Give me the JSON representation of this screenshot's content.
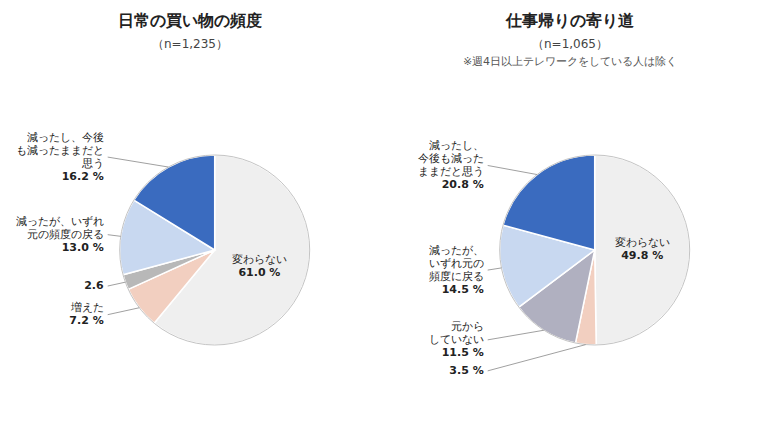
{
  "chart_data": [
    {
      "type": "pie",
      "title": "日常の買い物の頻度",
      "subtitle": "（n=1,235）",
      "categories": [
        "変わらない",
        "増えた",
        null,
        "減ったが、いずれ\n元の頻度の戻る",
        "減ったし、今後\nも減ったままだと\n思う"
      ],
      "values": [
        61.0,
        7.2,
        2.6,
        13.0,
        16.2
      ],
      "value_labels": [
        "61.0 %",
        "7.2 %",
        "2.6",
        "13.0 %",
        "16.2 %"
      ],
      "colors": [
        "#efefef",
        "#f2cfc0",
        "#b8b8b8",
        "#c8d8f0",
        "#3a6bbf"
      ],
      "data_labels": true
    },
    {
      "type": "pie",
      "title": "仕事帰りの寄り道",
      "subtitle": "（n=1,065）",
      "annotations": [
        "※週4日以上テレワークをしている人は除く"
      ],
      "categories": [
        "変わらない",
        null,
        "元から\nしていない",
        "減ったが、\nいずれ元の\n頻度に戻る",
        "減ったし、\n今後も減った\nままだと思う"
      ],
      "values": [
        49.8,
        3.5,
        11.5,
        14.5,
        20.8
      ],
      "value_labels": [
        "49.8 %",
        "3.5 %",
        "11.5 %",
        "14.5 %",
        "20.8 %"
      ],
      "colors": [
        "#efefef",
        "#f2cfc0",
        "#b0b0c0",
        "#c8d8f0",
        "#3a6bbf"
      ],
      "data_labels": true
    }
  ]
}
